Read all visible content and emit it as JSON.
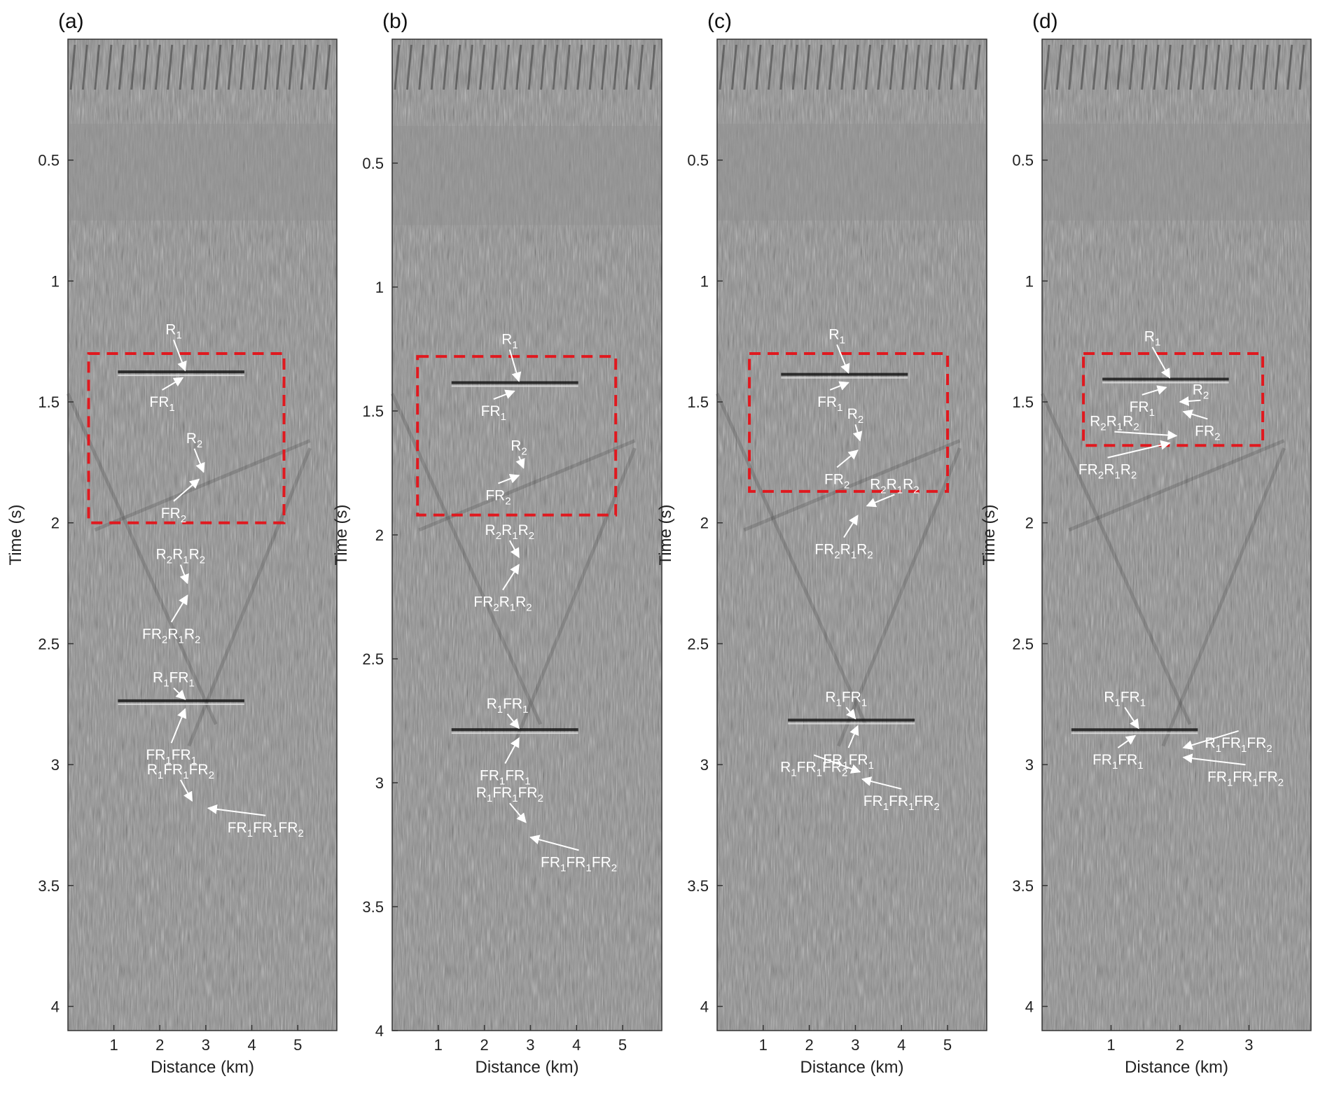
{
  "figure": {
    "type": "seismic-section-panels"
  },
  "chart_data": [
    {
      "type": "heatmap",
      "panel_label": "(a)",
      "xlabel": "Distance (km)",
      "ylabel": "Time (s)",
      "xlim": [
        0,
        5.85
      ],
      "ylim": [
        4.1,
        0.0
      ],
      "xticks": [
        "1",
        "2",
        "3",
        "4",
        "5"
      ],
      "yticks": [
        "0.5",
        "1",
        "1.5",
        "2",
        "2.5",
        "3",
        "3.5",
        "4"
      ],
      "box": {
        "x": [
          0.45,
          4.7
        ],
        "t": [
          1.3,
          2.0
        ]
      },
      "annotations": [
        {
          "text": [
            "R",
            "1"
          ],
          "x": 2.3,
          "t": 1.22,
          "target": [
            2.55,
            1.37
          ]
        },
        {
          "text": [
            "FR",
            "1"
          ],
          "x": 2.05,
          "t": 1.52,
          "target": [
            2.5,
            1.4
          ]
        },
        {
          "text": [
            "R",
            "2"
          ],
          "x": 2.75,
          "t": 1.67,
          "target": [
            2.95,
            1.79
          ]
        },
        {
          "text": [
            "FR",
            "2"
          ],
          "x": 2.3,
          "t": 1.98,
          "target": [
            2.85,
            1.82
          ]
        },
        {
          "text": [
            "R",
            "2",
            "R",
            "1",
            "R",
            "2"
          ],
          "x": 2.45,
          "t": 2.15,
          "target": [
            2.6,
            2.25
          ]
        },
        {
          "text": [
            "FR",
            "2",
            "R",
            "1",
            "R",
            "2"
          ],
          "x": 2.25,
          "t": 2.48,
          "target": [
            2.6,
            2.3
          ]
        },
        {
          "text": [
            "R",
            "1",
            "FR",
            "1"
          ],
          "x": 2.3,
          "t": 2.66,
          "target": [
            2.55,
            2.73
          ]
        },
        {
          "text": [
            "FR",
            "1",
            "FR",
            "1"
          ],
          "x": 2.25,
          "t": 2.98,
          "target": [
            2.55,
            2.77
          ]
        },
        {
          "text": [
            "R",
            "1",
            "FR",
            "1",
            "FR",
            "2"
          ],
          "x": 2.45,
          "t": 3.04,
          "target": [
            2.7,
            3.15
          ]
        },
        {
          "text": [
            "FR",
            "1",
            "FR",
            "1",
            "FR",
            "2"
          ],
          "x": 4.3,
          "t": 3.28,
          "target": [
            3.05,
            3.18
          ]
        }
      ]
    },
    {
      "type": "heatmap",
      "panel_label": "(b)",
      "xlabel": "Distance (km)",
      "ylabel": "Time (s)",
      "xlim": [
        0,
        5.85
      ],
      "ylim": [
        4.0,
        0.0
      ],
      "xticks": [
        "1",
        "2",
        "3",
        "4",
        "5"
      ],
      "yticks": [
        "0.5",
        "1",
        "1.5",
        "2",
        "2.5",
        "3",
        "3.5",
        "4"
      ],
      "box": {
        "x": [
          0.55,
          4.85
        ],
        "t": [
          1.28,
          1.92
        ]
      },
      "annotations": [
        {
          "text": [
            "R",
            "1"
          ],
          "x": 2.55,
          "t": 1.23,
          "target": [
            2.75,
            1.38
          ]
        },
        {
          "text": [
            "FR",
            "1"
          ],
          "x": 2.2,
          "t": 1.52,
          "target": [
            2.65,
            1.42
          ]
        },
        {
          "text": [
            "R",
            "2"
          ],
          "x": 2.75,
          "t": 1.66,
          "target": [
            2.85,
            1.73
          ]
        },
        {
          "text": [
            "FR",
            "2"
          ],
          "x": 2.3,
          "t": 1.86,
          "target": [
            2.75,
            1.76
          ]
        },
        {
          "text": [
            "R",
            "2",
            "R",
            "1",
            "R",
            "2"
          ],
          "x": 2.55,
          "t": 2.0,
          "target": [
            2.75,
            2.09
          ]
        },
        {
          "text": [
            "FR",
            "2",
            "R",
            "1",
            "R",
            "2"
          ],
          "x": 2.4,
          "t": 2.29,
          "target": [
            2.75,
            2.12
          ]
        },
        {
          "text": [
            "R",
            "1",
            "FR",
            "1"
          ],
          "x": 2.5,
          "t": 2.7,
          "target": [
            2.75,
            2.78
          ]
        },
        {
          "text": [
            "FR",
            "1",
            "FR",
            "1"
          ],
          "x": 2.45,
          "t": 2.99,
          "target": [
            2.75,
            2.82
          ]
        },
        {
          "text": [
            "R",
            "1",
            "FR",
            "1",
            "FR",
            "2"
          ],
          "x": 2.55,
          "t": 3.06,
          "target": [
            2.9,
            3.16
          ]
        },
        {
          "text": [
            "FR",
            "1",
            "FR",
            "1",
            "FR",
            "2"
          ],
          "x": 4.05,
          "t": 3.34,
          "target": [
            3.0,
            3.22
          ]
        }
      ]
    },
    {
      "type": "heatmap",
      "panel_label": "(c)",
      "xlabel": "Distance (km)",
      "ylabel": "Time (s)",
      "xlim": [
        0,
        5.85
      ],
      "ylim": [
        4.1,
        0.0
      ],
      "xticks": [
        "1",
        "2",
        "3",
        "4",
        "5"
      ],
      "yticks": [
        "0.5",
        "1",
        "1.5",
        "2",
        "2.5",
        "3",
        "3.5",
        "4"
      ],
      "box": {
        "x": [
          0.7,
          5.0
        ],
        "t": [
          1.3,
          1.87
        ]
      },
      "annotations": [
        {
          "text": [
            "R",
            "1"
          ],
          "x": 2.6,
          "t": 1.24,
          "target": [
            2.85,
            1.38
          ]
        },
        {
          "text": [
            "FR",
            "1"
          ],
          "x": 2.45,
          "t": 1.52,
          "target": [
            2.85,
            1.42
          ]
        },
        {
          "text": [
            "R",
            "2"
          ],
          "x": 3.0,
          "t": 1.57,
          "target": [
            3.1,
            1.66
          ]
        },
        {
          "text": [
            "FR",
            "2"
          ],
          "x": 2.6,
          "t": 1.84,
          "target": [
            3.05,
            1.7
          ]
        },
        {
          "text": [
            "R",
            "2",
            "R",
            "1",
            "R",
            "2"
          ],
          "x": 3.85,
          "t": 1.86,
          "target": [
            3.25,
            1.93
          ]
        },
        {
          "text": [
            "FR",
            "2",
            "R",
            "1",
            "R",
            "2"
          ],
          "x": 2.75,
          "t": 2.13,
          "target": [
            3.05,
            1.97
          ]
        },
        {
          "text": [
            "R",
            "1",
            "FR",
            "1"
          ],
          "x": 2.8,
          "t": 2.74,
          "target": [
            3.0,
            2.81
          ]
        },
        {
          "text": [
            "FR",
            "1",
            "FR",
            "1"
          ],
          "x": 2.85,
          "t": 3.0,
          "target": [
            3.05,
            2.84
          ]
        },
        {
          "text": [
            "R",
            "1",
            "FR",
            "1",
            "FR",
            "2"
          ],
          "x": 2.1,
          "t": 3.03,
          "target": [
            3.1,
            3.03
          ]
        },
        {
          "text": [
            "FR",
            "1",
            "FR",
            "1",
            "FR",
            "2"
          ],
          "x": 4.0,
          "t": 3.17,
          "target": [
            3.15,
            3.06
          ]
        }
      ]
    },
    {
      "type": "heatmap",
      "panel_label": "(d)",
      "xlabel": "Distance (km)",
      "ylabel": "Time (s)",
      "xlim": [
        0,
        3.9
      ],
      "ylim": [
        4.1,
        0.0
      ],
      "xticks": [
        "1",
        "2",
        "3"
      ],
      "yticks": [
        "0.5",
        "1",
        "1.5",
        "2",
        "2.5",
        "3",
        "3.5",
        "4"
      ],
      "box": {
        "x": [
          0.6,
          3.2
        ],
        "t": [
          1.3,
          1.68
        ]
      },
      "annotations": [
        {
          "text": [
            "R",
            "1"
          ],
          "x": 1.6,
          "t": 1.25,
          "target": [
            1.85,
            1.4
          ]
        },
        {
          "text": [
            "FR",
            "1"
          ],
          "x": 1.45,
          "t": 1.54,
          "target": [
            1.8,
            1.44
          ]
        },
        {
          "text": [
            "R",
            "2"
          ],
          "x": 2.3,
          "t": 1.47,
          "target": [
            2.0,
            1.5
          ]
        },
        {
          "text": [
            "FR",
            "2"
          ],
          "x": 2.4,
          "t": 1.64,
          "target": [
            2.05,
            1.54
          ]
        },
        {
          "text": [
            "R",
            "2",
            "R",
            "1",
            "R",
            "2"
          ],
          "x": 1.05,
          "t": 1.6,
          "target": [
            1.95,
            1.64
          ]
        },
        {
          "text": [
            "FR",
            "2",
            "R",
            "1",
            "R",
            "2"
          ],
          "x": 0.95,
          "t": 1.8,
          "target": [
            1.85,
            1.67
          ]
        },
        {
          "text": [
            "R",
            "1",
            "FR",
            "1"
          ],
          "x": 1.2,
          "t": 2.74,
          "target": [
            1.4,
            2.85
          ]
        },
        {
          "text": [
            "FR",
            "1",
            "FR",
            "1"
          ],
          "x": 1.1,
          "t": 3.0,
          "target": [
            1.35,
            2.88
          ]
        },
        {
          "text": [
            "R",
            "1",
            "FR",
            "1",
            "FR",
            "2"
          ],
          "x": 2.85,
          "t": 2.93,
          "target": [
            2.05,
            2.93
          ]
        },
        {
          "text": [
            "FR",
            "1",
            "FR",
            "1",
            "FR",
            "2"
          ],
          "x": 2.95,
          "t": 3.07,
          "target": [
            2.05,
            2.97
          ]
        }
      ]
    }
  ]
}
